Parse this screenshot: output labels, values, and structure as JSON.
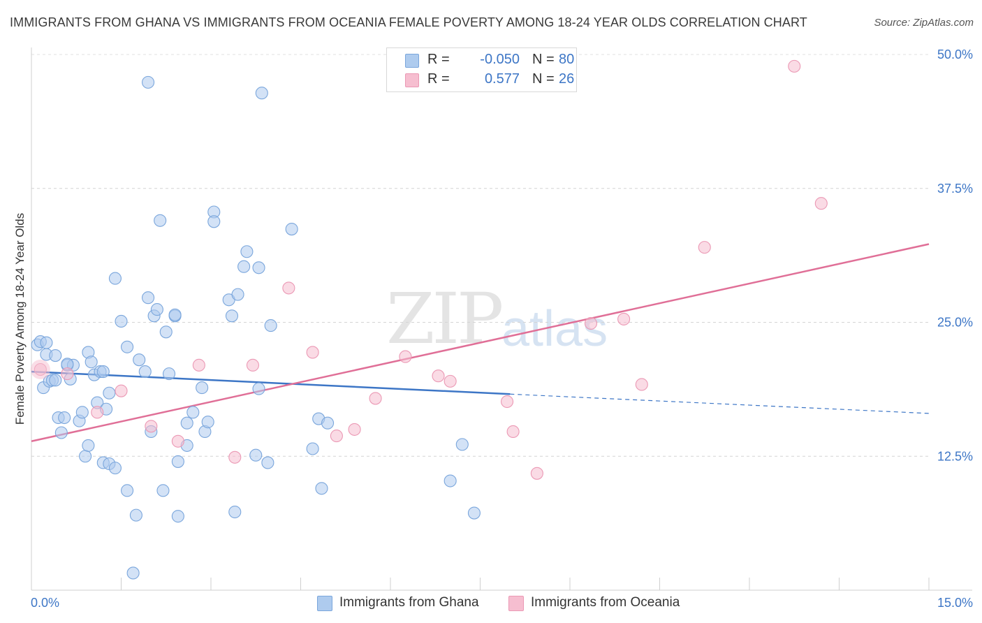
{
  "header": {
    "title": "IMMIGRANTS FROM GHANA VS IMMIGRANTS FROM OCEANIA FEMALE POVERTY AMONG 18-24 YEAR OLDS CORRELATION CHART",
    "source": "Source: ZipAtlas.com"
  },
  "watermark": {
    "zip": "ZIP",
    "atlas": "atlas"
  },
  "legend": {
    "rows": [
      {
        "r_label": "R =",
        "r_value": "-0.050",
        "n_label": "N =",
        "n_value": "80",
        "color": "#aecbee"
      },
      {
        "r_label": "R =",
        "r_value": "0.577",
        "n_label": "N =",
        "n_value": "26",
        "color": "#f6bed0"
      }
    ]
  },
  "bottom_legend": [
    {
      "label": "Immigrants from Ghana",
      "color": "#aecbee"
    },
    {
      "label": "Immigrants from Oceania",
      "color": "#f6bed0"
    }
  ],
  "chart_data": {
    "type": "scatter",
    "ylabel": "Female Poverty Among 18-24 Year Olds",
    "xlim": [
      0,
      15
    ],
    "ylim": [
      0,
      50
    ],
    "x_tick_labels": [
      "0.0%",
      "15.0%"
    ],
    "y_ticks": [
      {
        "value": 12.5,
        "label": "12.5%"
      },
      {
        "value": 25,
        "label": "25.0%"
      },
      {
        "value": 37.5,
        "label": "37.5%"
      },
      {
        "value": 50,
        "label": "50.0%"
      }
    ],
    "grid": true,
    "series": [
      {
        "name": "Immigrants from Ghana",
        "color": "#aecbee",
        "stroke": "#7aa6dc",
        "trend": {
          "x": [
            0,
            8.0
          ],
          "y": [
            20.4,
            18.3
          ],
          "dashed_to": [
            15,
            16.5
          ],
          "color": "#3d76c6"
        },
        "points": [
          [
            0.1,
            22.9
          ],
          [
            0.15,
            23.2
          ],
          [
            0.2,
            18.9
          ],
          [
            0.25,
            22.0
          ],
          [
            0.3,
            19.5
          ],
          [
            0.35,
            19.6
          ],
          [
            0.4,
            21.9
          ],
          [
            0.45,
            16.1
          ],
          [
            0.5,
            14.7
          ],
          [
            0.55,
            16.1
          ],
          [
            0.6,
            21.0
          ],
          [
            0.65,
            19.7
          ],
          [
            0.7,
            21.0
          ],
          [
            0.8,
            15.8
          ],
          [
            0.85,
            16.6
          ],
          [
            0.9,
            12.5
          ],
          [
            0.95,
            13.5
          ],
          [
            0.95,
            22.2
          ],
          [
            1.0,
            21.3
          ],
          [
            1.05,
            20.1
          ],
          [
            1.1,
            17.5
          ],
          [
            1.15,
            20.4
          ],
          [
            1.2,
            11.9
          ],
          [
            1.25,
            16.9
          ],
          [
            1.3,
            11.8
          ],
          [
            1.3,
            18.4
          ],
          [
            1.4,
            11.4
          ],
          [
            1.4,
            29.1
          ],
          [
            1.5,
            25.1
          ],
          [
            1.6,
            9.3
          ],
          [
            1.6,
            22.7
          ],
          [
            1.7,
            1.6
          ],
          [
            1.75,
            7.0
          ],
          [
            1.8,
            21.5
          ],
          [
            1.9,
            20.4
          ],
          [
            1.95,
            47.4
          ],
          [
            1.95,
            27.3
          ],
          [
            2.0,
            14.8
          ],
          [
            2.05,
            25.6
          ],
          [
            2.1,
            26.2
          ],
          [
            2.15,
            34.5
          ],
          [
            2.2,
            9.3
          ],
          [
            2.25,
            24.1
          ],
          [
            2.3,
            20.2
          ],
          [
            2.4,
            25.6
          ],
          [
            2.45,
            6.9
          ],
          [
            2.45,
            12.0
          ],
          [
            2.6,
            15.6
          ],
          [
            2.6,
            13.5
          ],
          [
            2.7,
            16.6
          ],
          [
            2.85,
            18.9
          ],
          [
            2.9,
            14.8
          ],
          [
            2.95,
            15.7
          ],
          [
            3.05,
            35.3
          ],
          [
            3.05,
            34.4
          ],
          [
            3.3,
            27.1
          ],
          [
            3.35,
            25.6
          ],
          [
            3.4,
            7.3
          ],
          [
            3.45,
            27.6
          ],
          [
            3.55,
            30.2
          ],
          [
            3.6,
            31.6
          ],
          [
            3.75,
            12.6
          ],
          [
            3.8,
            18.8
          ],
          [
            3.8,
            30.1
          ],
          [
            3.85,
            46.4
          ],
          [
            3.95,
            11.9
          ],
          [
            4.0,
            24.7
          ],
          [
            4.35,
            33.7
          ],
          [
            4.7,
            13.2
          ],
          [
            4.8,
            16.0
          ],
          [
            4.85,
            9.5
          ],
          [
            4.95,
            15.6
          ],
          [
            7.0,
            10.2
          ],
          [
            7.2,
            13.6
          ],
          [
            7.4,
            7.2
          ],
          [
            0.25,
            23.1
          ],
          [
            0.6,
            21.1
          ],
          [
            1.2,
            20.4
          ],
          [
            2.4,
            25.7
          ],
          [
            0.4,
            19.6
          ]
        ]
      },
      {
        "name": "Immigrants from Oceania",
        "color": "#f6bed0",
        "stroke": "#eb98b4",
        "trend": {
          "x": [
            0,
            15
          ],
          "y": [
            13.9,
            32.3
          ],
          "color": "#e06f97"
        },
        "points": [
          [
            0.15,
            20.6
          ],
          [
            1.1,
            16.6
          ],
          [
            1.5,
            18.6
          ],
          [
            2.0,
            15.3
          ],
          [
            2.45,
            13.9
          ],
          [
            2.8,
            21.0
          ],
          [
            3.4,
            12.4
          ],
          [
            3.7,
            21.0
          ],
          [
            4.3,
            28.2
          ],
          [
            4.7,
            22.2
          ],
          [
            5.1,
            14.4
          ],
          [
            5.4,
            15.0
          ],
          [
            5.75,
            17.9
          ],
          [
            6.25,
            21.8
          ],
          [
            6.8,
            20.0
          ],
          [
            7.0,
            19.5
          ],
          [
            7.95,
            17.6
          ],
          [
            8.05,
            14.8
          ],
          [
            8.45,
            10.9
          ],
          [
            9.35,
            24.9
          ],
          [
            9.9,
            25.3
          ],
          [
            10.2,
            19.2
          ],
          [
            11.25,
            32.0
          ],
          [
            12.75,
            48.9
          ],
          [
            13.2,
            36.1
          ],
          [
            0.6,
            20.2
          ]
        ]
      }
    ]
  }
}
